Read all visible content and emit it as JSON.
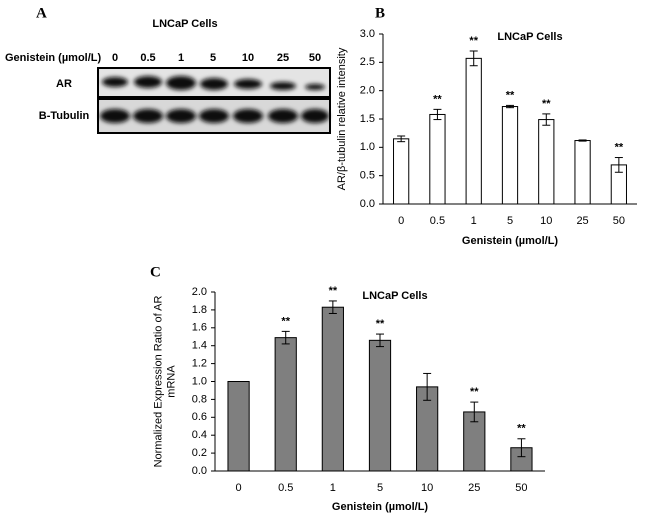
{
  "blot": {
    "panel": "A",
    "title": "LNCaP Cells",
    "treatment_label": "Genistein (µmol/L)",
    "concentrations": [
      "0",
      "0.5",
      "1",
      "5",
      "10",
      "25",
      "50"
    ],
    "rows": [
      "AR",
      "B-Tubulin"
    ]
  },
  "chart_data": [
    {
      "type": "bar",
      "panel": "B",
      "title": "LNCaP Cells",
      "xlabel": "Genistein (µmol/L)",
      "ylabel": [
        "AR/β-tubulin relative intensity"
      ],
      "categories": [
        "0",
        "0.5",
        "1",
        "5",
        "10",
        "25",
        "50"
      ],
      "values": [
        1.15,
        1.58,
        2.57,
        1.72,
        1.49,
        1.12,
        0.69
      ],
      "errors": [
        0.05,
        0.09,
        0.13,
        0.02,
        0.1,
        0.01,
        0.13
      ],
      "significance": [
        null,
        "**",
        "**",
        "**",
        "**",
        null,
        "**"
      ],
      "color": "#ffffff",
      "ylim": [
        0,
        3
      ],
      "yticks": [
        {
          "value": 0,
          "label": "0.0"
        },
        0.5,
        {
          "value": 1,
          "label": "1.0"
        },
        1.5,
        {
          "value": 2,
          "label": "2.0"
        },
        2.5,
        {
          "value": 3,
          "label": "3.0"
        }
      ]
    },
    {
      "type": "bar",
      "panel": "C",
      "title": "LNCaP Cells",
      "xlabel": "Genistein (µmol/L)",
      "ylabel": [
        "Normalized Expression Ratio of AR",
        "mRNA"
      ],
      "categories": [
        "0",
        "0.5",
        "1",
        "5",
        "10",
        "25",
        "50"
      ],
      "values": [
        1.0,
        1.49,
        1.83,
        1.46,
        0.94,
        0.66,
        0.26
      ],
      "errors": [
        0,
        0.07,
        0.07,
        0.07,
        0.15,
        0.11,
        0.1
      ],
      "significance": [
        null,
        "**",
        "**",
        "**",
        null,
        "**",
        "**"
      ],
      "color": "#7f7f7f",
      "ylim": [
        0,
        2
      ],
      "yticks": [
        {
          "value": 0,
          "label": "0.0"
        },
        0.2,
        0.4,
        0.6,
        0.8,
        {
          "value": 1,
          "label": "1.0"
        },
        1.2,
        1.4,
        1.6,
        1.8,
        {
          "value": 2,
          "label": "2.0"
        }
      ]
    }
  ]
}
